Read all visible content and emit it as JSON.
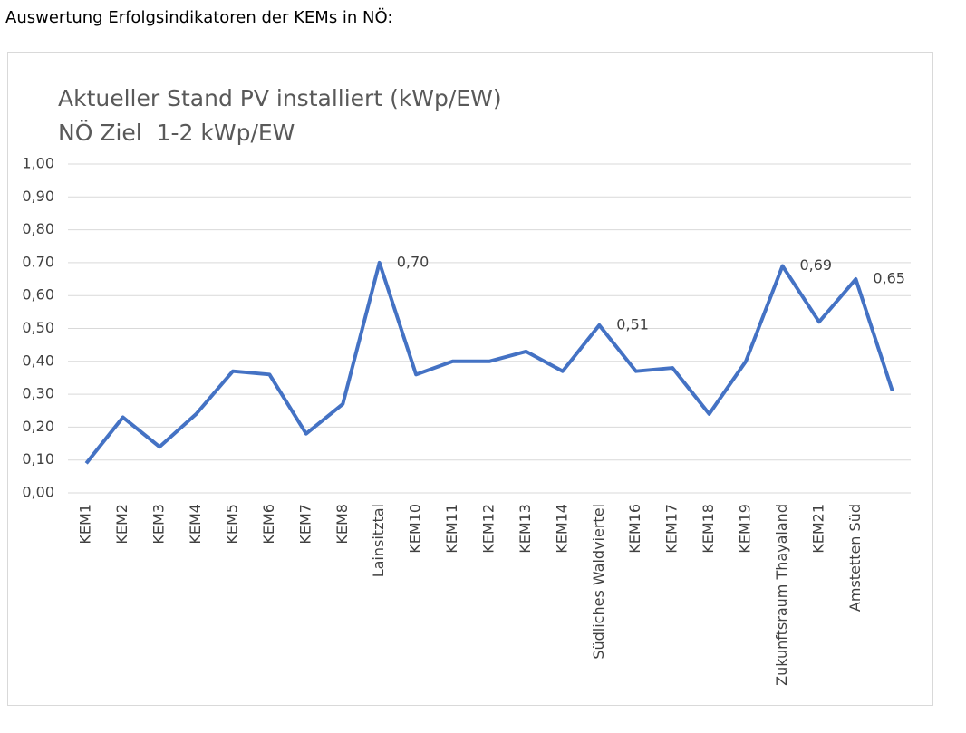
{
  "heading": "Auswertung Erfolgsindikatoren der KEMs in NÖ:",
  "chart_data": {
    "type": "line",
    "title": "Aktueller Stand PV installiert (kWp/EW)",
    "subtitle": "NÖ Ziel  1-2 kWp/EW",
    "categories": [
      "KEM1",
      "KEM2",
      "KEM3",
      "KEM4",
      "KEM5",
      "KEM6",
      "KEM7",
      "KEM8",
      "Lainsitztal",
      "KEM10",
      "KEM11",
      "KEM12",
      "KEM13",
      "KEM14",
      "Südliches Waldviertel",
      "KEM16",
      "KEM17",
      "KEM18",
      "KEM19",
      "Zukunftsraum Thayaland",
      "KEM21",
      "Amstetten Süd",
      null
    ],
    "series": [
      {
        "name": "PV installiert",
        "color": "#4472c4",
        "values": [
          0.09,
          0.23,
          0.14,
          0.24,
          0.37,
          0.36,
          0.18,
          0.27,
          0.7,
          0.36,
          0.4,
          0.4,
          0.43,
          0.37,
          0.51,
          0.37,
          0.38,
          0.24,
          0.4,
          0.69,
          0.52,
          0.65,
          0.31
        ],
        "value_labels": [
          null,
          null,
          null,
          null,
          null,
          null,
          null,
          null,
          "0,70",
          null,
          null,
          null,
          null,
          null,
          "0,51",
          null,
          null,
          null,
          null,
          "0,69",
          null,
          "0,65",
          null
        ]
      }
    ],
    "ylim": [
      0,
      1
    ],
    "yticks": [
      {
        "value": 0,
        "label": "0,00"
      },
      {
        "value": 0.1,
        "label": "0,10"
      },
      {
        "value": 0.2,
        "label": "0,20"
      },
      {
        "value": 0.3,
        "label": "0,30"
      },
      {
        "value": 0.4,
        "label": "0,40"
      },
      {
        "value": 0.5,
        "label": "0,50"
      },
      {
        "value": 0.6,
        "label": "0,60"
      },
      {
        "value": 0.7,
        "label": "0.70"
      },
      {
        "value": 0.8,
        "label": "0,80"
      },
      {
        "value": 0.9,
        "label": "0,90"
      },
      {
        "value": 1,
        "label": "1,00"
      }
    ],
    "grid": true
  }
}
